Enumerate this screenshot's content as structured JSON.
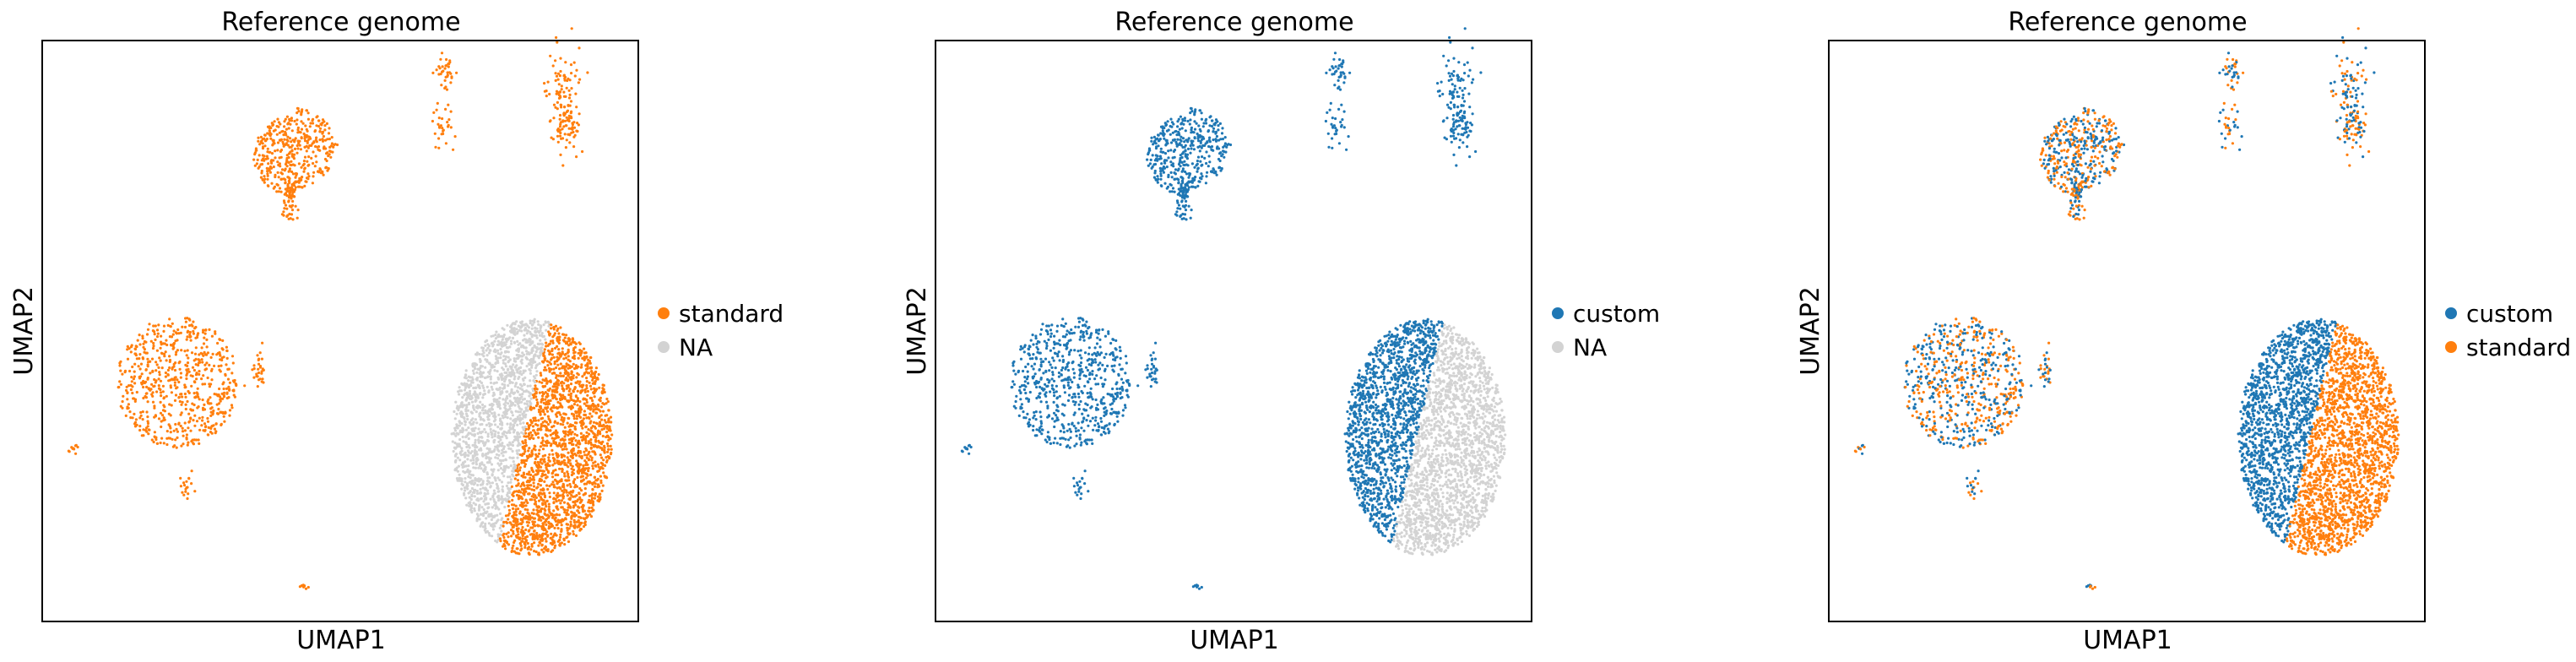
{
  "colors": {
    "standard": "#ff7f0e",
    "custom": "#1f77b4",
    "NA": "#d3d3d3"
  },
  "chart_data": [
    {
      "type": "scatter",
      "title": "Reference genome",
      "xlabel": "UMAP1",
      "ylabel": "UMAP2",
      "coloring": "standard_only",
      "legend": {
        "placement": "right",
        "entries": [
          "standard",
          "NA"
        ]
      },
      "grid": false,
      "ticks": false
    },
    {
      "type": "scatter",
      "title": "Reference genome",
      "xlabel": "UMAP1",
      "ylabel": "UMAP2",
      "coloring": "custom_only",
      "legend": {
        "placement": "right",
        "entries": [
          "custom",
          "NA"
        ]
      },
      "grid": false,
      "ticks": false
    },
    {
      "type": "scatter",
      "title": "Reference genome",
      "xlabel": "UMAP1",
      "ylabel": "UMAP2",
      "coloring": "both",
      "legend": {
        "placement": "right",
        "entries": [
          "custom",
          "standard"
        ]
      },
      "grid": false,
      "ticks": false
    }
  ]
}
